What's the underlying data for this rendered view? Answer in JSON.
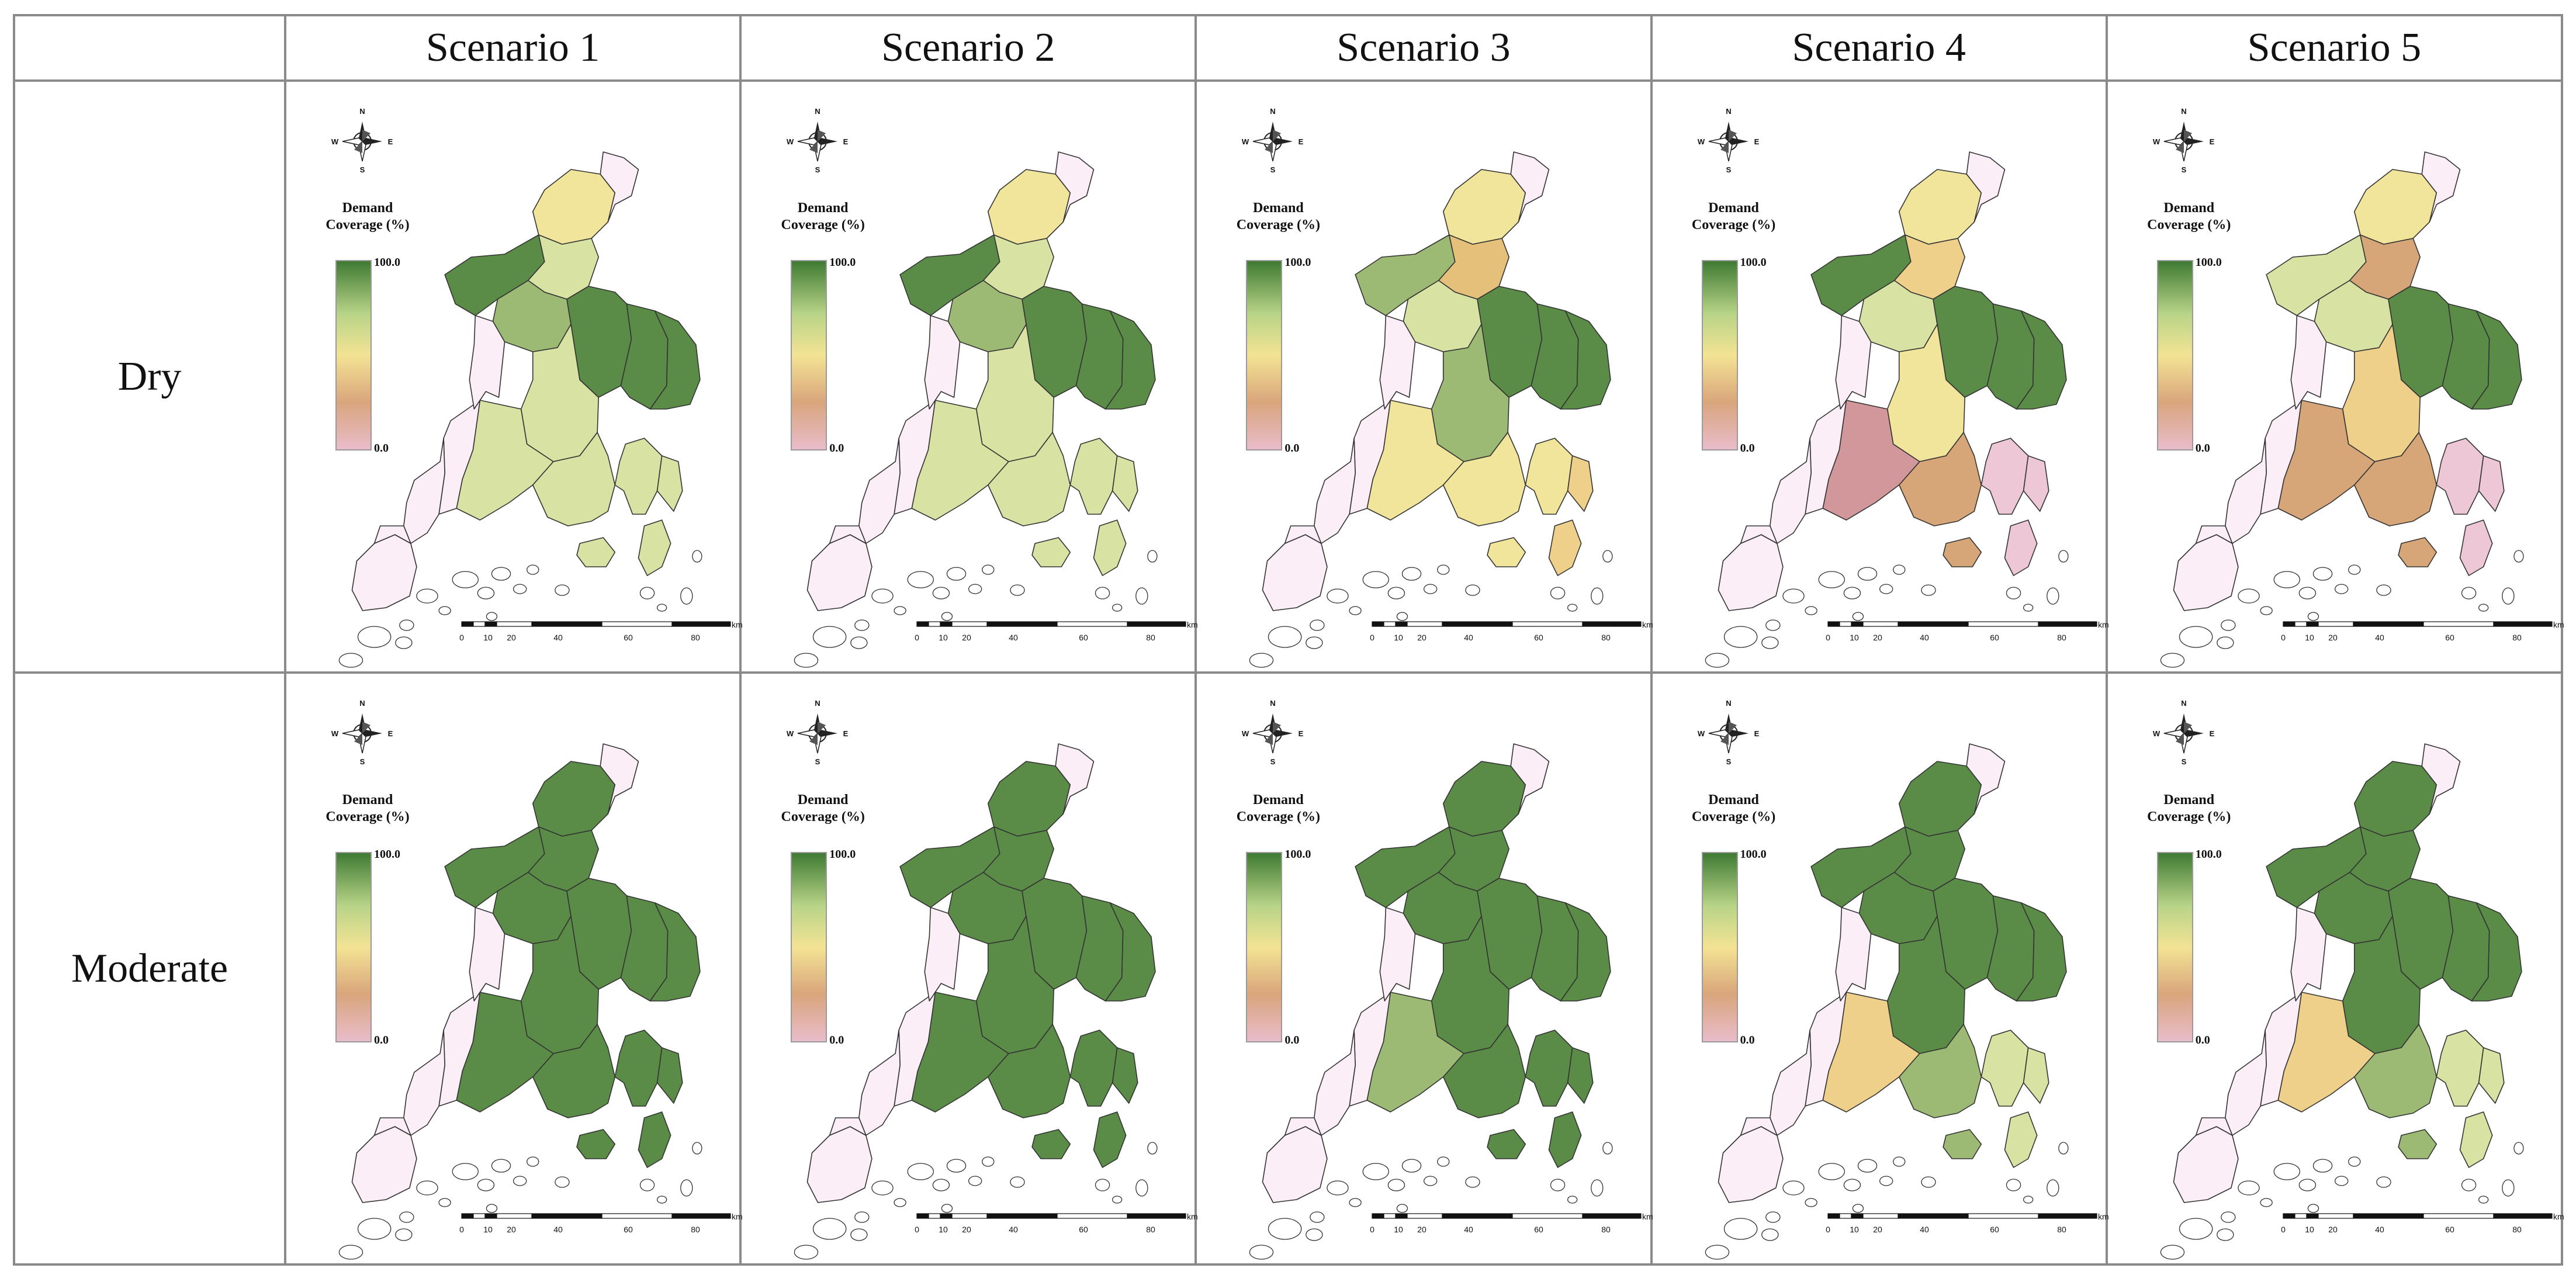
{
  "header": {
    "corner": "",
    "scenarios": [
      "Scenario 1",
      "Scenario 2",
      "Scenario 3",
      "Scenario 4",
      "Scenario 5"
    ]
  },
  "rows": [
    "Dry",
    "Moderate"
  ],
  "legend": {
    "title": "Demand Coverage (%)",
    "max": "100.0",
    "min": "0.0",
    "colors": [
      "#3f7a33",
      "#b8d488",
      "#f3e394",
      "#d9a57c",
      "#e9bccb"
    ]
  },
  "compass": {
    "n": "N",
    "s": "S",
    "e": "E",
    "w": "W"
  },
  "scale": {
    "ticks": [
      "0",
      "10",
      "20",
      "40",
      "60",
      "80"
    ],
    "unit": "km"
  },
  "palette": {
    "g5": "#5a8c47",
    "g4": "#9cba74",
    "g3": "#d8e3a3",
    "y2": "#f1e59b",
    "o2": "#eed08a",
    "o1": "#e5c07a",
    "t1": "#d6a678",
    "r1": "#d1979a",
    "p0": "#fbeef7",
    "p1": "#eec7d6"
  },
  "region_values": {
    "dry": [
      [
        "y2",
        "p0",
        "g5",
        "g3",
        "g4",
        "g5",
        "g5",
        "g5",
        "g3",
        "g3",
        "g3",
        "p0",
        "g3",
        "p0",
        "p0",
        "p0",
        "p0",
        "g3",
        "g3",
        "g3"
      ],
      [
        "y2",
        "p0",
        "g5",
        "g3",
        "g4",
        "g5",
        "g5",
        "g5",
        "g3",
        "g3",
        "g3",
        "p0",
        "g3",
        "p0",
        "p0",
        "p0",
        "p0",
        "g3",
        "g3",
        "g3"
      ],
      [
        "y2",
        "p0",
        "g4",
        "o1",
        "g3",
        "g5",
        "g5",
        "g5",
        "g4",
        "y2",
        "y2",
        "p0",
        "y2",
        "p0",
        "p0",
        "p0",
        "p0",
        "y2",
        "o2",
        "o2"
      ],
      [
        "y2",
        "p0",
        "g5",
        "o2",
        "g3",
        "g5",
        "g5",
        "g5",
        "y2",
        "r1",
        "t1",
        "p0",
        "p1",
        "p0",
        "p0",
        "p0",
        "p0",
        "t1",
        "p1",
        "p1"
      ],
      [
        "y2",
        "p0",
        "g3",
        "t1",
        "g3",
        "g5",
        "g5",
        "g5",
        "o2",
        "t1",
        "t1",
        "p0",
        "p1",
        "p0",
        "p0",
        "p0",
        "p0",
        "t1",
        "p1",
        "p1"
      ]
    ],
    "moderate": [
      [
        "g5",
        "p0",
        "g5",
        "g5",
        "g5",
        "g5",
        "g5",
        "g5",
        "g5",
        "g5",
        "g5",
        "p0",
        "g5",
        "p0",
        "p0",
        "p0",
        "p0",
        "g5",
        "g5",
        "g5"
      ],
      [
        "g5",
        "p0",
        "g5",
        "g5",
        "g5",
        "g5",
        "g5",
        "g5",
        "g5",
        "g5",
        "g5",
        "p0",
        "g5",
        "p0",
        "p0",
        "p0",
        "p0",
        "g5",
        "g5",
        "g5"
      ],
      [
        "g5",
        "p0",
        "g5",
        "g5",
        "g5",
        "g5",
        "g5",
        "g5",
        "g5",
        "g4",
        "g5",
        "p0",
        "g5",
        "p0",
        "p0",
        "p0",
        "p0",
        "g5",
        "g5",
        "g5"
      ],
      [
        "g5",
        "p0",
        "g5",
        "g5",
        "g5",
        "g5",
        "g5",
        "g5",
        "g5",
        "o2",
        "g4",
        "p0",
        "g3",
        "p0",
        "p0",
        "p0",
        "p0",
        "g4",
        "g3",
        "g3"
      ],
      [
        "g5",
        "p0",
        "g5",
        "g5",
        "g5",
        "g5",
        "g5",
        "g5",
        "g5",
        "o2",
        "g4",
        "p0",
        "g3",
        "p0",
        "p0",
        "p0",
        "p0",
        "g4",
        "g3",
        "g3"
      ]
    ]
  }
}
